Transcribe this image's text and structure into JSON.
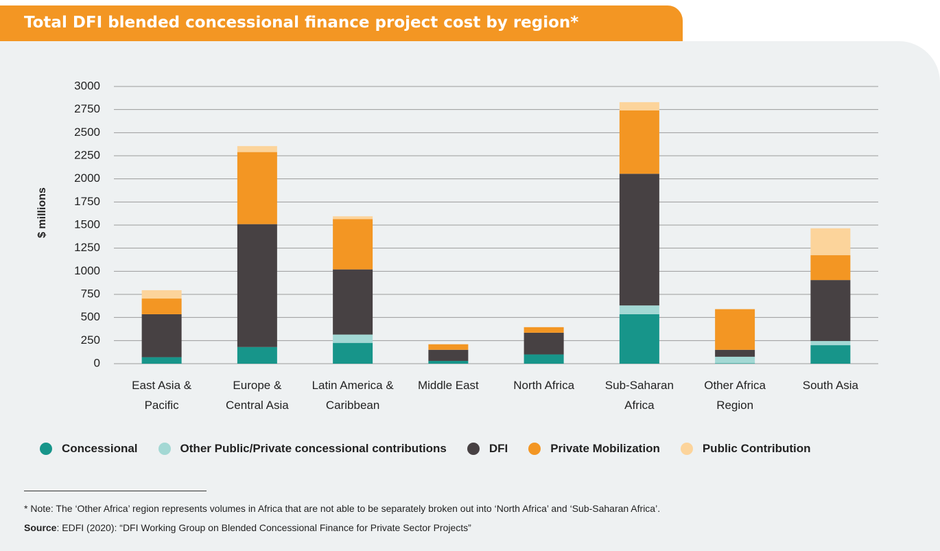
{
  "chart_data": {
    "type": "stacked_bar",
    "title": "Total DFI blended concessional finance project cost by region*",
    "y_label": "$ millions",
    "categories": [
      "East Asia & Pacific",
      "Europe & Central Asia",
      "Latin America & Caribbean",
      "Middle East",
      "North Africa",
      "Sub-Saharan Africa",
      "Other Africa Region",
      "South Asia"
    ],
    "series": [
      {
        "name": "Concessional",
        "color": "#17958a",
        "values": [
          70,
          180,
          225,
          30,
          100,
          535,
          5,
          200
        ]
      },
      {
        "name": "Other Public/Private concessional contributions",
        "color": "#a3d8d4",
        "values": [
          0,
          0,
          90,
          0,
          0,
          95,
          70,
          45
        ]
      },
      {
        "name": "DFI",
        "color": "#474143",
        "values": [
          465,
          1330,
          705,
          120,
          235,
          1425,
          75,
          660
        ]
      },
      {
        "name": "Private Mobilization",
        "color": "#f39623",
        "values": [
          170,
          780,
          545,
          60,
          60,
          685,
          440,
          270
        ]
      },
      {
        "name": "Public Contribution",
        "color": "#fcd49b",
        "values": [
          90,
          65,
          30,
          0,
          0,
          90,
          0,
          290
        ]
      }
    ],
    "ylim": [
      0,
      3000
    ],
    "yticks": [
      0,
      250,
      500,
      750,
      1000,
      1250,
      1500,
      1750,
      2000,
      2250,
      2500,
      2750,
      3000
    ],
    "grid": true,
    "note": "* Note: The ‘Other Africa’ region represents volumes in Africa that are not able to be separately broken out into ‘North Africa’ and ‘Sub-Saharan Africa’.",
    "source_label": "Source",
    "source_text": ": EDFI (2020): “DFI Working Group on Blended Concessional Finance for Private Sector Projects”"
  }
}
